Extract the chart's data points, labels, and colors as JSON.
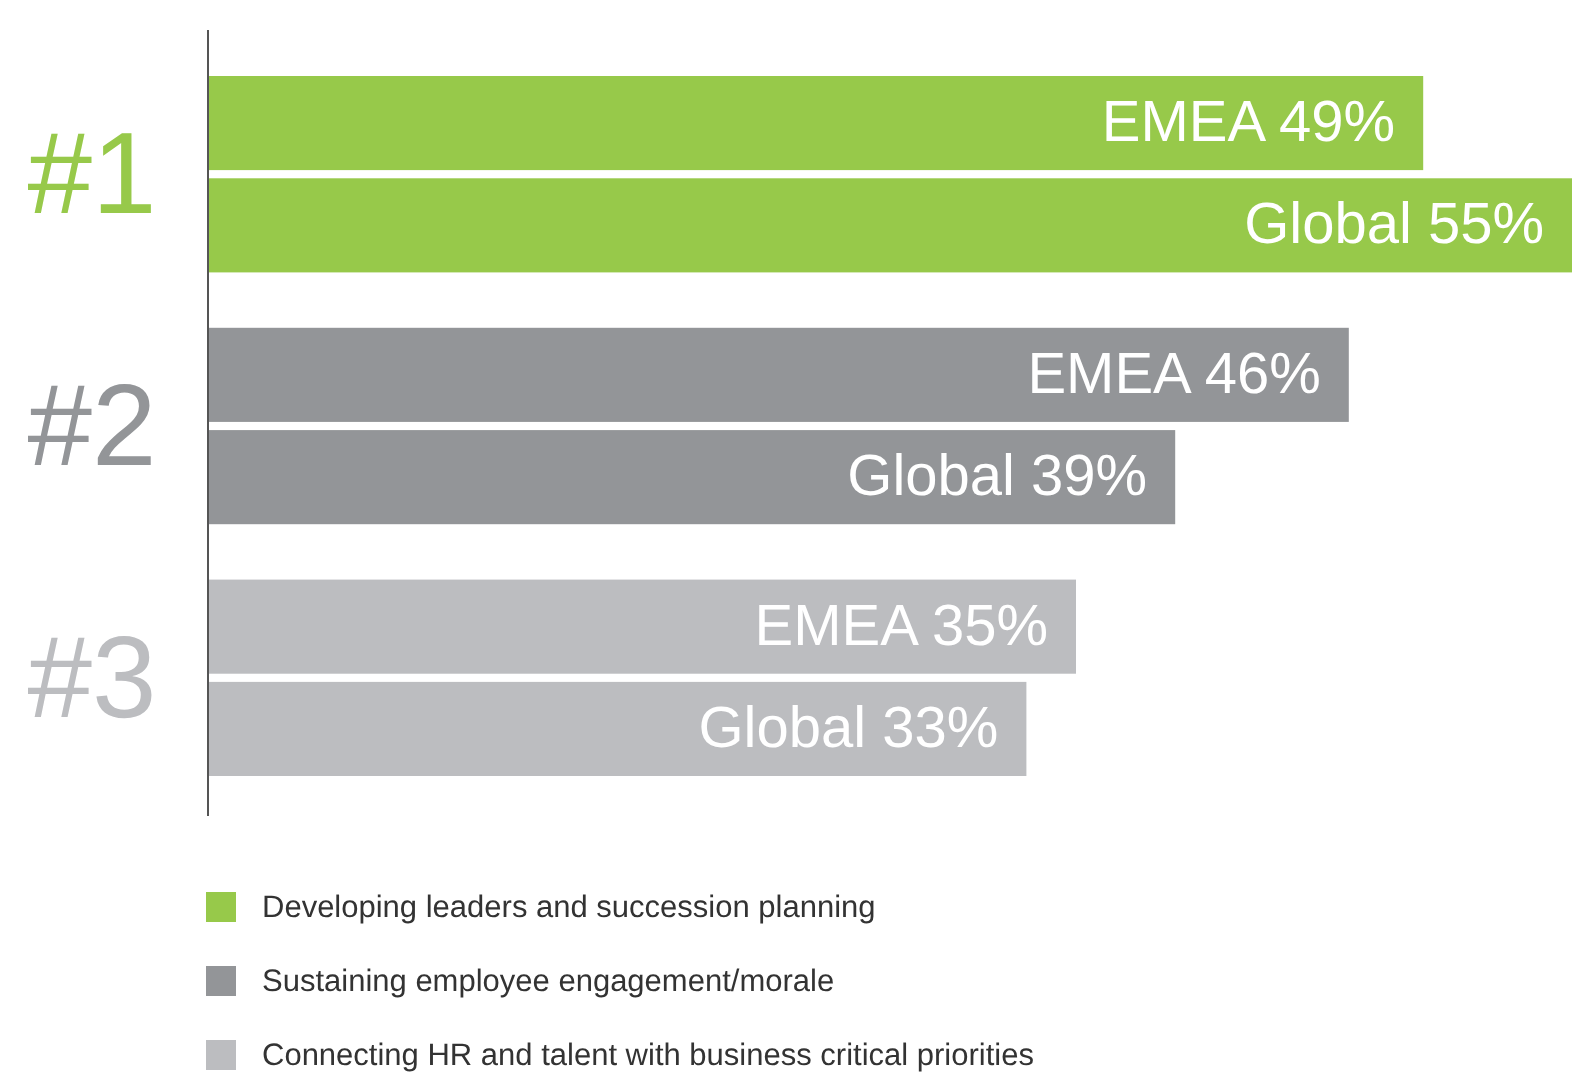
{
  "chart_data": {
    "type": "bar",
    "orientation": "horizontal",
    "categories": [
      "#1",
      "#2",
      "#3"
    ],
    "xlim": [
      0,
      55
    ],
    "series": [
      {
        "name": "EMEA",
        "colors": [
          "#97c94a",
          "#939598",
          "#bcbdc0"
        ],
        "values": [
          49,
          46,
          35
        ],
        "value_labels": [
          "49%",
          "46%",
          "35%"
        ]
      },
      {
        "name": "Global",
        "colors": [
          "#97c94a",
          "#939598",
          "#bcbdc0"
        ],
        "values": [
          55,
          39,
          33
        ],
        "value_labels": [
          "55%",
          "39%",
          "33%"
        ]
      }
    ],
    "annotations": [
      "Developing leaders and succession planning",
      "Sustaining employee engagement/morale",
      "Connecting HR and talent with business critical priorities"
    ]
  }
}
